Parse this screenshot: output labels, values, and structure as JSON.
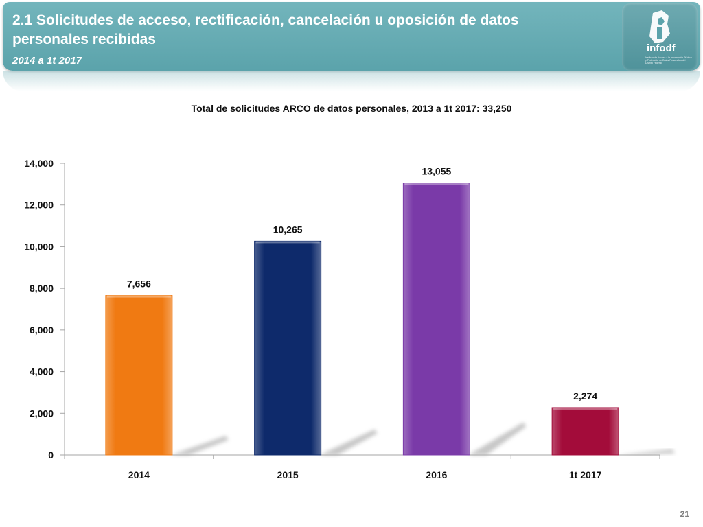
{
  "slide": {
    "title": "2.1 Solicitudes de acceso, rectificación, cancelación u oposición de datos personales recibidas",
    "subtitle": "2014 a 1t 2017",
    "logo_word": "infodf",
    "logo_text": "Instituto de Acceso a la Información Pública y Protección de Datos Personales del Distrito Federal",
    "page_number": "21"
  },
  "colors": {
    "header": "#62a9b1",
    "bars": [
      "#f07a12",
      "#0e2a6b",
      "#7a3aa8",
      "#a30c3a"
    ]
  },
  "chart_data": {
    "type": "bar",
    "title": "Total de solicitudes ARCO de datos personales, 2013 a 1t 2017: 33,250",
    "categories": [
      "2014",
      "2015",
      "2016",
      "1t 2017"
    ],
    "values": [
      7656,
      10265,
      13055,
      2274
    ],
    "value_labels": [
      "7,656",
      "10,265",
      "13,055",
      "2,274"
    ],
    "yticks": [
      0,
      2000,
      4000,
      6000,
      8000,
      10000,
      12000,
      14000
    ],
    "ytick_labels": [
      "0",
      "2,000",
      "4,000",
      "6,000",
      "8,000",
      "10,000",
      "12,000",
      "14,000"
    ],
    "ylim": [
      0,
      14000
    ],
    "xlabel": "",
    "ylabel": "",
    "legend": "none",
    "grid": false
  }
}
